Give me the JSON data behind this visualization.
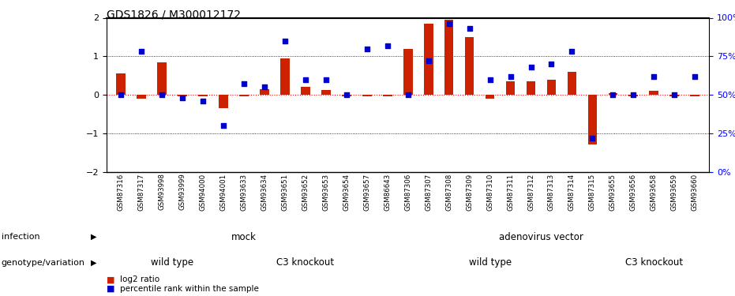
{
  "title": "GDS1826 / M300012172",
  "samples": [
    "GSM87316",
    "GSM87317",
    "GSM93998",
    "GSM93999",
    "GSM94000",
    "GSM94001",
    "GSM93633",
    "GSM93634",
    "GSM93651",
    "GSM93652",
    "GSM93653",
    "GSM93654",
    "GSM93657",
    "GSM86643",
    "GSM87306",
    "GSM87307",
    "GSM87308",
    "GSM87309",
    "GSM87310",
    "GSM87311",
    "GSM87312",
    "GSM87313",
    "GSM87314",
    "GSM87315",
    "GSM93655",
    "GSM93656",
    "GSM93658",
    "GSM93659",
    "GSM93660"
  ],
  "log2_ratio": [
    0.55,
    -0.1,
    0.85,
    -0.05,
    -0.05,
    -0.35,
    -0.05,
    0.15,
    0.95,
    0.2,
    0.12,
    -0.05,
    -0.05,
    -0.05,
    1.2,
    1.85,
    1.95,
    1.5,
    -0.1,
    0.35,
    0.35,
    0.4,
    0.6,
    -1.3,
    0.05,
    -0.05,
    0.1,
    -0.05,
    -0.05
  ],
  "percentile": [
    50,
    78,
    50,
    48,
    46,
    30,
    57,
    55,
    85,
    60,
    60,
    50,
    80,
    82,
    50,
    72,
    96,
    93,
    60,
    62,
    68,
    70,
    78,
    22,
    50,
    50,
    62,
    50,
    62
  ],
  "infection_groups": [
    {
      "label": "mock",
      "color": "#aaffaa",
      "start": 0,
      "end": 12
    },
    {
      "label": "adenovirus vector",
      "color": "#44cc44",
      "start": 13,
      "end": 28
    }
  ],
  "genotype_groups": [
    {
      "label": "wild type",
      "color": "#ffaaff",
      "start": 0,
      "end": 5
    },
    {
      "label": "C3 knockout",
      "color": "#ee66ee",
      "start": 6,
      "end": 12
    },
    {
      "label": "wild type",
      "color": "#ffaaff",
      "start": 13,
      "end": 23
    },
    {
      "label": "C3 knockout",
      "color": "#ee66ee",
      "start": 24,
      "end": 28
    }
  ],
  "ylim": [
    -2,
    2
  ],
  "y2lim": [
    0,
    100
  ],
  "bar_color": "#cc2200",
  "dot_color": "#0000cc",
  "infection_label": "infection",
  "genotype_label": "genotype/variation",
  "legend_log2": "log2 ratio",
  "legend_pct": "percentile rank within the sample",
  "bg_color": "#ffffff",
  "xtick_bg": "#cccccc"
}
